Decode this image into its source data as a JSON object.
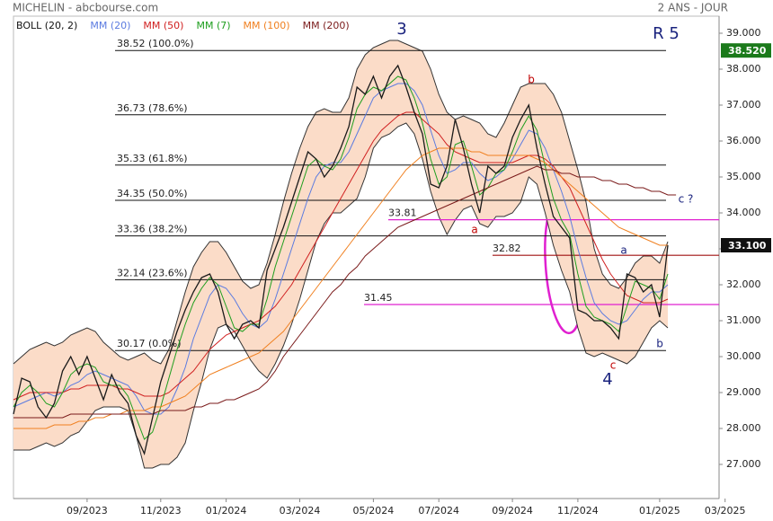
{
  "header": {
    "source": "MICHELIN - abcbourse.com",
    "period": "2 ANS - JOUR"
  },
  "chart_data": {
    "type": "line",
    "categories": [
      null,
      null,
      null,
      null,
      null,
      null,
      null,
      null,
      null,
      "09/2023",
      null,
      null,
      null,
      null,
      null,
      null,
      null,
      null,
      "11/2023",
      null,
      null,
      null,
      null,
      null,
      null,
      null,
      "01/2024",
      null,
      null,
      null,
      null,
      null,
      null,
      null,
      null,
      "03/2024",
      null,
      null,
      null,
      null,
      null,
      null,
      null,
      null,
      "05/2024",
      null,
      null,
      null,
      null,
      null,
      null,
      null,
      "07/2024",
      null,
      null,
      null,
      null,
      null,
      null,
      null,
      null,
      "09/2024",
      null,
      null,
      null,
      null,
      null,
      null,
      null,
      "11/2024",
      null,
      null,
      null,
      null,
      null,
      null,
      null,
      null,
      null,
      "01/2025",
      null,
      null,
      null,
      null,
      null,
      null,
      null,
      "03/2025"
    ],
    "ylim": [
      26.5,
      39.5
    ],
    "yticks": [
      {
        "value": 27,
        "label": "27.000"
      },
      {
        "value": 28,
        "label": "28.000"
      },
      {
        "value": 29,
        "label": "29.000"
      },
      {
        "value": 30,
        "label": "30.000"
      },
      {
        "value": 31,
        "label": "31.000"
      },
      {
        "value": 32,
        "label": "32.000"
      },
      {
        "value": 33,
        "label": "33.000"
      },
      {
        "value": 34,
        "label": "34.000"
      },
      {
        "value": 35,
        "label": "35.000"
      },
      {
        "value": 36,
        "label": "36.000"
      },
      {
        "value": 37,
        "label": "37.000"
      },
      {
        "value": 38,
        "label": "38.000"
      },
      {
        "value": 39,
        "label": "39.000"
      }
    ],
    "bollinger": {
      "name": "BOLL (20, 2)",
      "color": "#333333",
      "fill": "#fbdcc8",
      "upper": [
        29.8,
        30.0,
        30.2,
        30.3,
        30.4,
        30.3,
        30.4,
        30.6,
        30.7,
        30.8,
        30.7,
        30.4,
        30.2,
        30.0,
        29.9,
        30.0,
        30.1,
        29.9,
        29.8,
        30.2,
        31.0,
        31.8,
        32.5,
        32.9,
        33.2,
        33.2,
        32.9,
        32.5,
        32.1,
        31.9,
        32.0,
        32.6,
        33.4,
        34.3,
        35.1,
        35.8,
        36.4,
        36.8,
        36.9,
        36.8,
        36.8,
        37.2,
        38.0,
        38.4,
        38.6,
        38.7,
        38.8,
        38.8,
        38.7,
        38.6,
        38.5,
        38.0,
        37.3,
        36.8,
        36.6,
        36.7,
        36.6,
        36.5,
        36.2,
        36.1,
        36.5,
        37.0,
        37.5,
        37.6,
        37.6,
        37.6,
        37.3,
        36.8,
        36.0,
        35.2,
        34.3,
        33.0,
        32.3,
        32.0,
        31.9,
        32.2,
        32.6,
        32.8,
        32.8,
        32.6,
        33.2,
        null,
        null,
        null,
        null,
        null,
        null,
        null
      ],
      "lower": [
        27.4,
        27.4,
        27.4,
        27.5,
        27.6,
        27.5,
        27.6,
        27.8,
        27.9,
        28.2,
        28.5,
        28.6,
        28.6,
        28.6,
        28.5,
        27.8,
        26.9,
        26.9,
        27.0,
        27.0,
        27.2,
        27.6,
        28.5,
        29.3,
        30.2,
        30.8,
        30.9,
        30.7,
        30.3,
        29.9,
        29.6,
        29.4,
        29.8,
        30.3,
        30.9,
        31.6,
        32.4,
        33.2,
        33.7,
        34.0,
        34.0,
        34.2,
        34.4,
        35.0,
        35.8,
        36.1,
        36.2,
        36.4,
        36.5,
        36.2,
        35.5,
        34.6,
        33.9,
        33.4,
        33.8,
        34.1,
        34.2,
        33.7,
        33.6,
        33.9,
        33.9,
        34.0,
        34.3,
        35.0,
        34.8,
        34.0,
        33.1,
        32.4,
        31.8,
        30.8,
        30.1,
        30.0,
        30.1,
        30.0,
        29.9,
        29.8,
        30.0,
        30.4,
        30.8,
        31.0,
        30.8,
        null,
        null,
        null,
        null,
        null,
        null,
        null
      ]
    },
    "series": [
      {
        "name": "MM (20)",
        "color": "#5b7be0",
        "values": [
          28.6,
          28.7,
          28.8,
          28.9,
          29.0,
          28.9,
          29.0,
          29.2,
          29.3,
          29.5,
          29.6,
          29.5,
          29.4,
          29.3,
          29.2,
          28.9,
          28.5,
          28.4,
          28.4,
          28.6,
          29.1,
          29.7,
          30.5,
          31.1,
          31.7,
          32.0,
          31.9,
          31.6,
          31.2,
          30.9,
          30.8,
          31.0,
          31.6,
          32.3,
          33.0,
          33.7,
          34.4,
          35.0,
          35.3,
          35.4,
          35.4,
          35.7,
          36.2,
          36.7,
          37.2,
          37.4,
          37.5,
          37.6,
          37.6,
          37.4,
          37.0,
          36.3,
          35.6,
          35.1,
          35.2,
          35.4,
          35.4,
          35.1,
          34.9,
          35.0,
          35.2,
          35.5,
          35.9,
          36.3,
          36.2,
          35.8,
          35.2,
          34.6,
          33.9,
          33.0,
          32.2,
          31.5,
          31.2,
          31.0,
          30.9,
          31.0,
          31.3,
          31.6,
          31.8,
          31.8,
          32.0,
          null,
          null,
          null,
          null,
          null,
          null,
          null
        ]
      },
      {
        "name": "MM (50)",
        "color": "#d02020",
        "values": [
          28.8,
          28.9,
          29.0,
          29.0,
          29.0,
          29.0,
          29.0,
          29.1,
          29.1,
          29.2,
          29.2,
          29.2,
          29.2,
          29.1,
          29.1,
          29.0,
          28.9,
          28.9,
          28.9,
          29.0,
          29.2,
          29.4,
          29.6,
          29.9,
          30.2,
          30.4,
          30.6,
          30.7,
          30.8,
          30.9,
          31.0,
          31.2,
          31.4,
          31.7,
          32.0,
          32.4,
          32.8,
          33.2,
          33.6,
          34.0,
          34.4,
          34.8,
          35.2,
          35.6,
          36.0,
          36.3,
          36.5,
          36.7,
          36.8,
          36.8,
          36.6,
          36.4,
          36.2,
          35.9,
          35.7,
          35.6,
          35.5,
          35.4,
          35.4,
          35.4,
          35.4,
          35.4,
          35.5,
          35.6,
          35.6,
          35.5,
          35.3,
          35.0,
          34.7,
          34.2,
          33.7,
          33.2,
          32.7,
          32.3,
          32.0,
          31.7,
          31.6,
          31.5,
          31.5,
          31.5,
          31.6,
          null,
          null,
          null,
          null,
          null,
          null,
          null
        ]
      },
      {
        "name": "MM (7)",
        "color": "#1e9e1e",
        "values": [
          28.6,
          29.0,
          29.2,
          29.0,
          28.7,
          28.6,
          29.0,
          29.5,
          29.7,
          29.8,
          29.7,
          29.3,
          29.2,
          29.2,
          28.9,
          28.3,
          27.7,
          27.9,
          28.6,
          29.4,
          30.2,
          30.9,
          31.5,
          31.9,
          32.2,
          32.0,
          31.4,
          30.8,
          30.7,
          30.9,
          30.9,
          31.6,
          32.5,
          33.2,
          33.9,
          34.6,
          35.3,
          35.5,
          35.3,
          35.2,
          35.5,
          36.1,
          36.9,
          37.3,
          37.5,
          37.4,
          37.6,
          37.8,
          37.7,
          37.2,
          36.5,
          35.5,
          34.8,
          35.0,
          35.9,
          36.0,
          35.3,
          34.5,
          34.7,
          35.1,
          35.2,
          35.7,
          36.3,
          36.7,
          36.3,
          35.3,
          34.4,
          33.8,
          33.4,
          32.3,
          31.4,
          31.1,
          31.0,
          30.9,
          30.7,
          31.4,
          32.1,
          32.0,
          31.9,
          31.6,
          32.3,
          null,
          null,
          null,
          null,
          null,
          null,
          null
        ]
      },
      {
        "name": "MM (100)",
        "color": "#f08020",
        "values": [
          28.0,
          28.0,
          28.0,
          28.0,
          28.0,
          28.1,
          28.1,
          28.1,
          28.2,
          28.2,
          28.3,
          28.3,
          28.4,
          28.4,
          28.5,
          28.5,
          28.5,
          28.6,
          28.6,
          28.7,
          28.8,
          28.9,
          29.1,
          29.3,
          29.5,
          29.6,
          29.7,
          29.8,
          29.9,
          30.0,
          30.1,
          30.3,
          30.5,
          30.7,
          31.0,
          31.3,
          31.6,
          31.9,
          32.2,
          32.5,
          32.8,
          33.1,
          33.4,
          33.7,
          34.0,
          34.3,
          34.6,
          34.9,
          35.2,
          35.4,
          35.6,
          35.7,
          35.8,
          35.8,
          35.8,
          35.8,
          35.7,
          35.7,
          35.6,
          35.6,
          35.6,
          35.6,
          35.6,
          35.6,
          35.5,
          35.4,
          35.2,
          35.0,
          34.8,
          34.6,
          34.4,
          34.2,
          34.0,
          33.8,
          33.6,
          33.5,
          33.4,
          33.3,
          33.2,
          33.1,
          33.1,
          null,
          null,
          null,
          null,
          null,
          null,
          null
        ]
      },
      {
        "name": "MM (200)",
        "color": "#7a1a1a",
        "values": [
          28.3,
          28.3,
          28.3,
          28.3,
          28.3,
          28.3,
          28.3,
          28.4,
          28.4,
          28.4,
          28.4,
          28.4,
          28.4,
          28.4,
          28.4,
          28.4,
          28.4,
          28.4,
          28.5,
          28.5,
          28.5,
          28.5,
          28.6,
          28.6,
          28.7,
          28.7,
          28.8,
          28.8,
          28.9,
          29.0,
          29.1,
          29.3,
          29.6,
          30.0,
          30.3,
          30.6,
          30.9,
          31.2,
          31.5,
          31.8,
          32.0,
          32.3,
          32.5,
          32.8,
          33.0,
          33.2,
          33.4,
          33.6,
          33.7,
          33.8,
          33.9,
          34.0,
          34.1,
          34.2,
          34.3,
          34.4,
          34.5,
          34.6,
          34.7,
          34.8,
          34.9,
          35.0,
          35.1,
          35.2,
          35.3,
          35.2,
          35.2,
          35.1,
          35.1,
          35.0,
          35.0,
          35.0,
          34.9,
          34.9,
          34.8,
          34.8,
          34.7,
          34.7,
          34.6,
          34.6,
          34.5,
          34.5,
          null,
          null,
          null,
          null,
          null,
          null
        ]
      }
    ],
    "price": {
      "color": "#1a1a1a",
      "values": [
        28.4,
        29.4,
        29.3,
        28.6,
        28.3,
        28.7,
        29.6,
        30.0,
        29.5,
        30.0,
        29.4,
        28.8,
        29.5,
        29.0,
        28.7,
        27.8,
        27.3,
        28.3,
        29.3,
        30.0,
        30.7,
        31.3,
        31.8,
        32.2,
        32.3,
        31.8,
        30.9,
        30.5,
        30.9,
        31.0,
        30.8,
        32.4,
        33.0,
        33.6,
        34.3,
        35.0,
        35.7,
        35.5,
        35.0,
        35.3,
        35.8,
        36.4,
        37.5,
        37.3,
        37.8,
        37.2,
        37.8,
        38.1,
        37.5,
        36.8,
        36.2,
        34.8,
        34.7,
        35.3,
        36.6,
        35.8,
        34.8,
        34.0,
        35.3,
        35.1,
        35.3,
        36.1,
        36.6,
        37.0,
        35.8,
        34.8,
        33.9,
        33.6,
        33.3,
        31.3,
        31.2,
        31.0,
        31.0,
        30.8,
        30.5,
        32.3,
        32.2,
        31.8,
        32.0,
        31.1,
        33.1,
        null,
        null,
        null,
        null,
        null,
        null,
        null
      ]
    },
    "fibonacci": [
      {
        "value": 38.52,
        "label": "38.52  (100.0%)"
      },
      {
        "value": 36.73,
        "label": "36.73  (78.6%)"
      },
      {
        "value": 35.33,
        "label": "35.33  (61.8%)"
      },
      {
        "value": 34.35,
        "label": "34.35  (50.0%)"
      },
      {
        "value": 33.36,
        "label": "33.36  (38.2%)"
      },
      {
        "value": 32.14,
        "label": "32.14  (23.6%)"
      },
      {
        "value": 30.17,
        "label": "30.17  (0.0%)"
      }
    ],
    "levels": [
      {
        "value": 33.81,
        "color": "#e020d0"
      },
      {
        "value": 32.82,
        "color": "#a01010"
      },
      {
        "value": 31.45,
        "color": "#e020d0"
      }
    ],
    "last": {
      "value": 33.1,
      "label": "33.100",
      "color": "#111111"
    },
    "high": {
      "value": 38.52,
      "label": "38.520",
      "color": "#1b7a1b"
    },
    "annotations": [
      {
        "text": "3",
        "color": "#1a237e"
      },
      {
        "text": "R 5",
        "color": "#1a237e"
      },
      {
        "text": "b",
        "color": "#c00000"
      },
      {
        "text": "a",
        "color": "#c00000"
      },
      {
        "text": "c ?",
        "color": "#1a237e"
      },
      {
        "text": "a",
        "color": "#1a237e"
      },
      {
        "text": "b",
        "color": "#1a237e"
      },
      {
        "text": "c",
        "color": "#c00000"
      },
      {
        "text": "4",
        "color": "#1a237e"
      }
    ]
  }
}
